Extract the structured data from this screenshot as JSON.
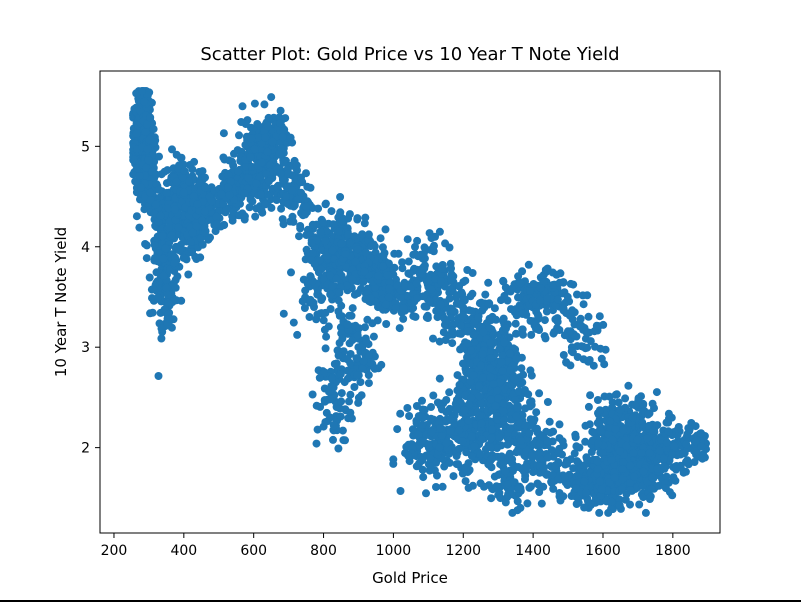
{
  "chart_data": {
    "type": "scatter",
    "title": "Scatter Plot: Gold Price vs 10 Year T Note Yield",
    "xlabel": "Gold Price",
    "ylabel": "10 Year T Note Yield",
    "xlim": [
      160,
      1935
    ],
    "ylim": [
      1.15,
      5.75
    ],
    "xticks": [
      200,
      400,
      600,
      800,
      1000,
      1200,
      1400,
      1600,
      1800
    ],
    "yticks": [
      2,
      3,
      4,
      5
    ],
    "grid": false,
    "marker_color": "#1f77b4",
    "clusters": [
      {
        "cx": 280,
        "cy": 5.05,
        "sx": 14,
        "sy": 0.22,
        "n": 320
      },
      {
        "cx": 285,
        "cy": 5.35,
        "sx": 10,
        "sy": 0.12,
        "n": 80
      },
      {
        "cx": 300,
        "cy": 4.75,
        "sx": 12,
        "sy": 0.22,
        "n": 90
      },
      {
        "cx": 340,
        "cy": 4.0,
        "sx": 22,
        "sy": 0.32,
        "n": 180
      },
      {
        "cx": 355,
        "cy": 3.45,
        "sx": 10,
        "sy": 0.18,
        "n": 45
      },
      {
        "cx": 395,
        "cy": 4.3,
        "sx": 35,
        "sy": 0.22,
        "n": 260
      },
      {
        "cx": 390,
        "cy": 4.7,
        "sx": 15,
        "sy": 0.12,
        "n": 40
      },
      {
        "cx": 470,
        "cy": 4.4,
        "sx": 40,
        "sy": 0.12,
        "n": 140
      },
      {
        "cx": 560,
        "cy": 4.6,
        "sx": 40,
        "sy": 0.12,
        "n": 120
      },
      {
        "cx": 620,
        "cy": 4.85,
        "sx": 35,
        "sy": 0.22,
        "n": 230
      },
      {
        "cx": 640,
        "cy": 5.12,
        "sx": 25,
        "sy": 0.08,
        "n": 60
      },
      {
        "cx": 700,
        "cy": 4.6,
        "sx": 30,
        "sy": 0.15,
        "n": 50
      },
      {
        "cx": 735,
        "cy": 4.45,
        "sx": 15,
        "sy": 0.15,
        "n": 40
      },
      {
        "cx": 795,
        "cy": 4.0,
        "sx": 25,
        "sy": 0.2,
        "n": 60
      },
      {
        "cx": 870,
        "cy": 3.95,
        "sx": 45,
        "sy": 0.22,
        "n": 220
      },
      {
        "cx": 770,
        "cy": 3.6,
        "sx": 30,
        "sy": 0.2,
        "n": 40
      },
      {
        "cx": 830,
        "cy": 3.35,
        "sx": 25,
        "sy": 0.2,
        "n": 30
      },
      {
        "cx": 830,
        "cy": 2.45,
        "sx": 25,
        "sy": 0.25,
        "n": 70
      },
      {
        "cx": 895,
        "cy": 2.9,
        "sx": 25,
        "sy": 0.18,
        "n": 80
      },
      {
        "cx": 950,
        "cy": 3.7,
        "sx": 30,
        "sy": 0.2,
        "n": 120
      },
      {
        "cx": 1000,
        "cy": 3.5,
        "sx": 40,
        "sy": 0.12,
        "n": 80
      },
      {
        "cx": 1110,
        "cy": 3.7,
        "sx": 35,
        "sy": 0.2,
        "n": 120
      },
      {
        "cx": 1180,
        "cy": 3.4,
        "sx": 30,
        "sy": 0.2,
        "n": 60
      },
      {
        "cx": 1240,
        "cy": 3.0,
        "sx": 30,
        "sy": 0.3,
        "n": 120
      },
      {
        "cx": 1290,
        "cy": 2.65,
        "sx": 45,
        "sy": 0.3,
        "n": 320
      },
      {
        "cx": 1230,
        "cy": 2.2,
        "sx": 60,
        "sy": 0.25,
        "n": 280
      },
      {
        "cx": 1110,
        "cy": 2.05,
        "sx": 40,
        "sy": 0.18,
        "n": 140
      },
      {
        "cx": 1330,
        "cy": 1.65,
        "sx": 25,
        "sy": 0.15,
        "n": 60
      },
      {
        "cx": 1410,
        "cy": 3.45,
        "sx": 45,
        "sy": 0.15,
        "n": 170
      },
      {
        "cx": 1380,
        "cy": 2.15,
        "sx": 40,
        "sy": 0.22,
        "n": 100
      },
      {
        "cx": 1450,
        "cy": 1.85,
        "sx": 40,
        "sy": 0.15,
        "n": 80
      },
      {
        "cx": 1540,
        "cy": 3.15,
        "sx": 30,
        "sy": 0.2,
        "n": 60
      },
      {
        "cx": 1580,
        "cy": 1.65,
        "sx": 45,
        "sy": 0.12,
        "n": 200
      },
      {
        "cx": 1630,
        "cy": 1.95,
        "sx": 45,
        "sy": 0.2,
        "n": 260
      },
      {
        "cx": 1720,
        "cy": 1.85,
        "sx": 40,
        "sy": 0.18,
        "n": 240
      },
      {
        "cx": 1680,
        "cy": 2.3,
        "sx": 40,
        "sy": 0.12,
        "n": 80
      },
      {
        "cx": 1800,
        "cy": 2.0,
        "sx": 40,
        "sy": 0.12,
        "n": 120
      },
      {
        "cx": 1880,
        "cy": 2.05,
        "sx": 12,
        "sy": 0.08,
        "n": 20
      }
    ]
  }
}
